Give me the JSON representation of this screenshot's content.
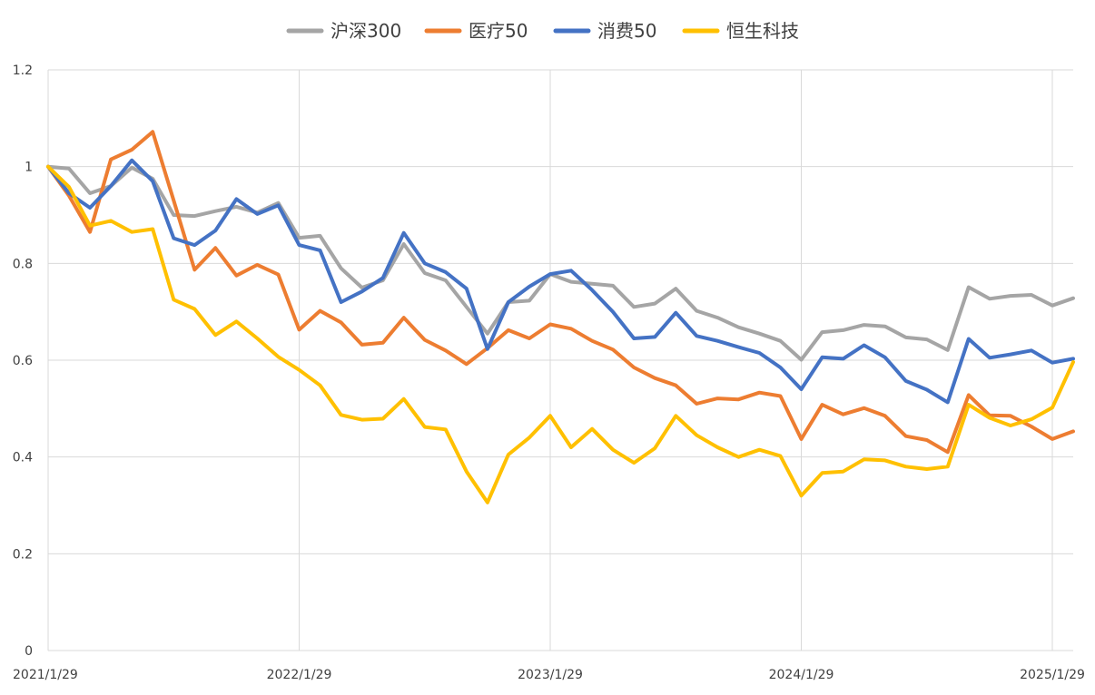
{
  "chart_data": {
    "type": "line",
    "title": "",
    "xlabel": "",
    "ylabel": "",
    "ylim": [
      0,
      1.2
    ],
    "yticks": [
      "0",
      "0.2",
      "0.4",
      "0.6",
      "0.8",
      "1",
      "1.2"
    ],
    "x_tick_labels": [
      "2021/1/29",
      "2022/1/29",
      "2023/1/29",
      "2024/1/29",
      "2025/1/29"
    ],
    "x_start": "2021-01-29",
    "x_interval": "month",
    "grid": {
      "horizontal": true,
      "vertical": true
    },
    "legend_position": "top",
    "series": [
      {
        "name": "沪深300",
        "color": "#a5a5a5",
        "values": [
          1.0,
          0.996,
          0.945,
          0.96,
          0.998,
          0.975,
          0.9,
          0.898,
          0.908,
          0.917,
          0.905,
          0.925,
          0.853,
          0.857,
          0.79,
          0.75,
          0.765,
          0.84,
          0.78,
          0.765,
          0.71,
          0.655,
          0.72,
          0.723,
          0.778,
          0.762,
          0.758,
          0.754,
          0.71,
          0.717,
          0.748,
          0.702,
          0.688,
          0.668,
          0.655,
          0.64,
          0.601,
          0.658,
          0.662,
          0.673,
          0.67,
          0.647,
          0.643,
          0.621,
          0.751,
          0.727,
          0.733,
          0.735,
          0.713,
          0.728
        ]
      },
      {
        "name": "医疗50",
        "color": "#ed7d31",
        "values": [
          1.0,
          0.94,
          0.865,
          1.015,
          1.035,
          1.072,
          0.93,
          0.787,
          0.832,
          0.775,
          0.797,
          0.777,
          0.663,
          0.702,
          0.678,
          0.632,
          0.636,
          0.688,
          0.642,
          0.62,
          0.592,
          0.625,
          0.662,
          0.645,
          0.674,
          0.665,
          0.64,
          0.622,
          0.585,
          0.563,
          0.548,
          0.51,
          0.521,
          0.519,
          0.533,
          0.526,
          0.437,
          0.508,
          0.488,
          0.501,
          0.485,
          0.443,
          0.435,
          0.41,
          0.528,
          0.486,
          0.485,
          0.463,
          0.437,
          0.453
        ]
      },
      {
        "name": "消费50",
        "color": "#4472c4",
        "values": [
          1.0,
          0.945,
          0.915,
          0.96,
          1.013,
          0.97,
          0.852,
          0.838,
          0.868,
          0.933,
          0.902,
          0.92,
          0.838,
          0.827,
          0.72,
          0.742,
          0.77,
          0.863,
          0.8,
          0.782,
          0.748,
          0.623,
          0.72,
          0.752,
          0.778,
          0.785,
          0.745,
          0.7,
          0.645,
          0.648,
          0.698,
          0.65,
          0.64,
          0.627,
          0.615,
          0.585,
          0.54,
          0.606,
          0.603,
          0.631,
          0.606,
          0.557,
          0.539,
          0.513,
          0.644,
          0.605,
          0.612,
          0.62,
          0.595,
          0.603
        ]
      },
      {
        "name": "恒生科技",
        "color": "#ffc000",
        "values": [
          1.0,
          0.958,
          0.878,
          0.888,
          0.865,
          0.871,
          0.725,
          0.706,
          0.652,
          0.68,
          0.645,
          0.607,
          0.58,
          0.548,
          0.487,
          0.477,
          0.479,
          0.52,
          0.462,
          0.457,
          0.37,
          0.306,
          0.405,
          0.44,
          0.485,
          0.42,
          0.458,
          0.415,
          0.388,
          0.418,
          0.485,
          0.445,
          0.42,
          0.4,
          0.415,
          0.402,
          0.32,
          0.367,
          0.37,
          0.395,
          0.393,
          0.38,
          0.375,
          0.38,
          0.508,
          0.481,
          0.465,
          0.478,
          0.502,
          0.596
        ]
      }
    ]
  }
}
